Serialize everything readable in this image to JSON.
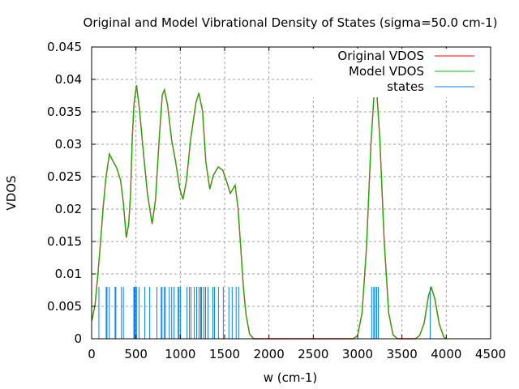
{
  "chart_data": {
    "type": "line",
    "title": "Original and Model Vibrational Density of States (sigma=50.0 cm-1)",
    "xlabel": "w (cm-1)",
    "ylabel": "VDOS",
    "xlim": [
      0,
      4500
    ],
    "ylim": [
      0,
      0.045
    ],
    "xticks": [
      "0",
      "500",
      "1000",
      "1500",
      "2000",
      "2500",
      "3000",
      "3500",
      "4000",
      "4500"
    ],
    "yticks": [
      "0",
      "0.005",
      "0.01",
      "0.015",
      "0.02",
      "0.025",
      "0.03",
      "0.035",
      "0.04",
      "0.045"
    ],
    "grid": true,
    "legend_position": "top-right",
    "series": [
      {
        "name": "Original VDOS",
        "color": "#ff0000",
        "style": "line"
      },
      {
        "name": "Model VDOS",
        "color": "#00c000",
        "style": "line"
      },
      {
        "name": "states",
        "color": "#0080ff",
        "style": "impulses"
      }
    ],
    "vdos_points": [
      [
        3,
        0.0028
      ],
      [
        39,
        0.0053
      ],
      [
        70,
        0.0099
      ],
      [
        100,
        0.0148
      ],
      [
        130,
        0.0202
      ],
      [
        161,
        0.0248
      ],
      [
        200,
        0.0285
      ],
      [
        236,
        0.0275
      ],
      [
        282,
        0.0264
      ],
      [
        327,
        0.0244
      ],
      [
        358,
        0.021
      ],
      [
        391,
        0.0156
      ],
      [
        418,
        0.0177
      ],
      [
        439,
        0.0223
      ],
      [
        458,
        0.031
      ],
      [
        479,
        0.0364
      ],
      [
        506,
        0.0391
      ],
      [
        539,
        0.0355
      ],
      [
        585,
        0.0285
      ],
      [
        630,
        0.0223
      ],
      [
        682,
        0.0177
      ],
      [
        721,
        0.0215
      ],
      [
        761,
        0.0306
      ],
      [
        797,
        0.0376
      ],
      [
        821,
        0.0384
      ],
      [
        857,
        0.036
      ],
      [
        903,
        0.0306
      ],
      [
        948,
        0.0273
      ],
      [
        994,
        0.0231
      ],
      [
        1030,
        0.0215
      ],
      [
        1070,
        0.0244
      ],
      [
        1115,
        0.0306
      ],
      [
        1176,
        0.0364
      ],
      [
        1209,
        0.0379
      ],
      [
        1251,
        0.0351
      ],
      [
        1288,
        0.0273
      ],
      [
        1333,
        0.0231
      ],
      [
        1373,
        0.0252
      ],
      [
        1427,
        0.0265
      ],
      [
        1479,
        0.026
      ],
      [
        1524,
        0.0242
      ],
      [
        1564,
        0.0224
      ],
      [
        1618,
        0.0237
      ],
      [
        1651,
        0.0202
      ],
      [
        1682,
        0.014
      ],
      [
        1712,
        0.0078
      ],
      [
        1742,
        0.0036
      ],
      [
        1782,
        0.0007
      ],
      [
        1827,
        0
      ],
      [
        2950,
        0
      ],
      [
        3000,
        0.0005
      ],
      [
        3050,
        0.004
      ],
      [
        3100,
        0.014
      ],
      [
        3150,
        0.03
      ],
      [
        3201,
        0.0412
      ],
      [
        3250,
        0.031
      ],
      [
        3300,
        0.015
      ],
      [
        3350,
        0.004
      ],
      [
        3400,
        0.0006
      ],
      [
        3450,
        0
      ],
      [
        3650,
        0
      ],
      [
        3700,
        0.0005
      ],
      [
        3750,
        0.0024
      ],
      [
        3800,
        0.0067
      ],
      [
        3832,
        0.0079
      ],
      [
        3870,
        0.0062
      ],
      [
        3920,
        0.0023
      ],
      [
        3970,
        0.0003
      ],
      [
        4000,
        0
      ]
    ],
    "states_height": 0.008,
    "states": [
      82,
      164,
      173,
      200,
      264,
      273,
      336,
      358,
      476,
      485,
      494,
      506,
      536,
      600,
      655,
      736,
      785,
      794,
      821,
      830,
      876,
      903,
      930,
      976,
      985,
      1003,
      1076,
      1103,
      1121,
      1158,
      1185,
      1212,
      1230,
      1239,
      1267,
      1285,
      1312,
      1367,
      1385,
      1430,
      1485,
      1548,
      1585,
      1630,
      1658,
      3158,
      3182,
      3194,
      3215,
      3233,
      3818
    ]
  }
}
